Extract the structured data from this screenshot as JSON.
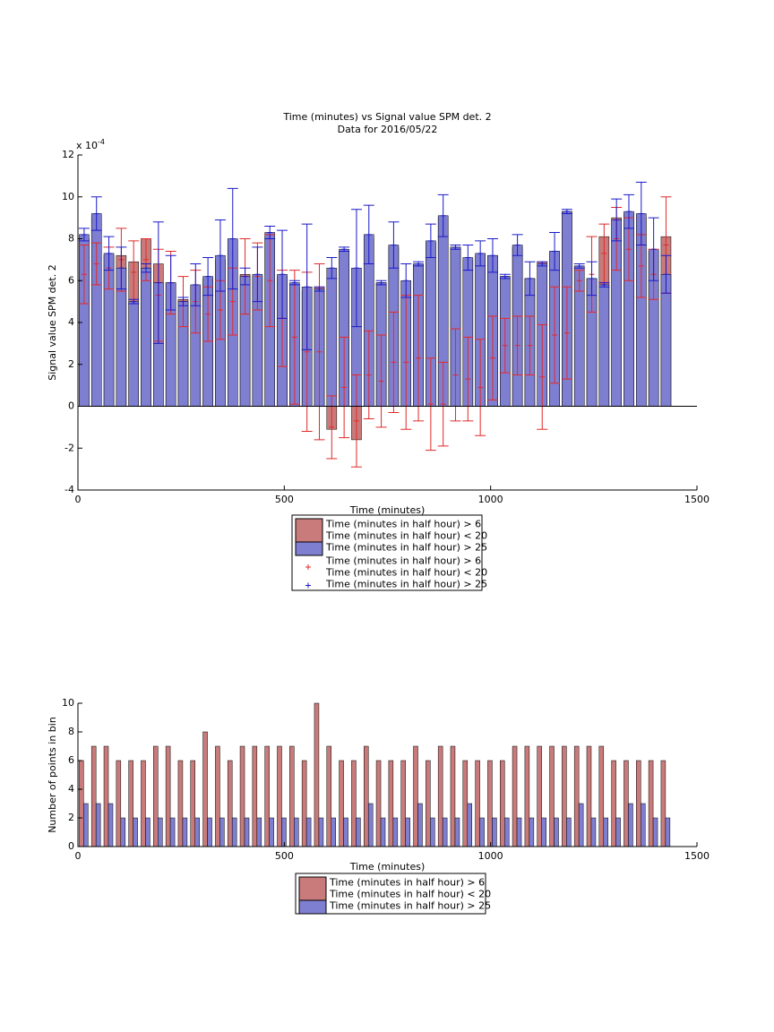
{
  "chart_data": [
    {
      "type": "bar_errorbar",
      "title": "Time (minutes) vs Signal value SPM det. 2",
      "subtitle": "Data for 2016/05/22",
      "x_label": "Time (minutes)",
      "y_label": "Signal value SPM det. 2",
      "y_multiplier": {
        "base": "x 10",
        "exponent": "-4"
      },
      "xlim": [
        0,
        1500
      ],
      "xticks": [
        0,
        500,
        1000,
        1500
      ],
      "ylim": [
        -4,
        12
      ],
      "yticks": [
        -4,
        -2,
        0,
        2,
        4,
        6,
        8,
        10,
        12
      ],
      "x": [
        15,
        45,
        75,
        105,
        135,
        165,
        195,
        225,
        255,
        285,
        315,
        345,
        375,
        405,
        435,
        465,
        495,
        525,
        555,
        585,
        615,
        645,
        675,
        705,
        735,
        765,
        795,
        825,
        855,
        885,
        915,
        945,
        975,
        1005,
        1035,
        1065,
        1095,
        1125,
        1155,
        1185,
        1215,
        1245,
        1275,
        1305,
        1335,
        1365,
        1395,
        1425
      ],
      "series": [
        {
          "name": "Time (minutes in half hour) > 6\nTime (minutes in half hour) < 20",
          "color": "#c97b7b",
          "kind": "bar",
          "values": [
            8.0,
            9.0,
            7.2,
            7.2,
            6.9,
            8.0,
            6.8,
            5.9,
            5.1,
            5.7,
            6.1,
            7.0,
            7.5,
            6.3,
            6.2,
            8.1,
            6.2,
            5.7,
            5.5,
            5.7,
            -1.1,
            7.4,
            -1.6,
            8.0,
            5.9,
            7.6,
            6.0,
            6.8,
            7.8,
            9.0,
            7.6,
            7.0,
            7.2,
            7.2,
            6.2,
            7.6,
            6.1,
            6.9,
            7.4,
            9.3,
            6.7,
            6.1,
            8.1,
            9.0,
            9.2,
            9.0,
            7.4,
            8.1
          ]
        },
        {
          "name": "Time (minutes in half hour) > 25",
          "color": "#7f7fd2",
          "kind": "bar",
          "values": [
            8.2,
            9.2,
            7.3,
            6.6,
            5.0,
            6.6,
            5.9,
            5.9,
            5.0,
            5.8,
            6.2,
            7.2,
            8.0,
            6.2,
            6.3,
            8.3,
            6.3,
            5.9,
            5.7,
            5.6,
            6.6,
            7.5,
            6.6,
            8.2,
            5.9,
            7.7,
            6.0,
            6.8,
            7.9,
            9.1,
            7.6,
            7.1,
            7.3,
            7.2,
            6.2,
            7.7,
            6.1,
            6.8,
            7.4,
            9.3,
            6.7,
            6.1,
            5.8,
            8.9,
            9.3,
            9.2,
            7.5,
            6.3
          ]
        },
        {
          "name": "Time (minutes in half hour) > 6\nTime (minutes in half hour) < 20",
          "color": "#e02a2a",
          "kind": "errorbar",
          "values": [
            6.3,
            6.8,
            6.6,
            7.0,
            6.4,
            7.0,
            5.3,
            5.9,
            5.0,
            5.0,
            4.4,
            4.6,
            5.0,
            6.2,
            6.2,
            6.0,
            4.2,
            3.3,
            2.6,
            2.6,
            -1.0,
            0.9,
            -0.7,
            1.5,
            1.2,
            2.1,
            2.1,
            2.3,
            0.1,
            0.1,
            1.5,
            1.3,
            0.9,
            2.3,
            2.9,
            2.9,
            2.9,
            1.4,
            3.4,
            3.5,
            6.0,
            6.3,
            7.3,
            8.0,
            7.5,
            6.7,
            6.3,
            7.7
          ],
          "errors": [
            1.4,
            1.0,
            1.0,
            1.5,
            1.5,
            1.0,
            2.2,
            1.5,
            1.2,
            1.5,
            1.3,
            1.4,
            1.6,
            1.8,
            1.6,
            2.2,
            2.3,
            3.2,
            3.8,
            4.2,
            1.5,
            2.4,
            2.2,
            2.1,
            2.2,
            2.4,
            3.2,
            3.0,
            2.2,
            2.0,
            2.2,
            2.0,
            2.3,
            2.0,
            1.3,
            1.4,
            1.4,
            2.5,
            2.3,
            2.2,
            0.5,
            1.8,
            1.4,
            1.5,
            1.5,
            1.5,
            1.2,
            2.3
          ]
        },
        {
          "name": "Time (minutes in half hour) > 25",
          "color": "#1a1ac8",
          "kind": "errorbar",
          "values": [
            8.2,
            9.2,
            7.3,
            6.6,
            5.0,
            6.6,
            5.9,
            5.9,
            5.0,
            5.8,
            6.2,
            7.2,
            8.0,
            6.2,
            6.3,
            8.3,
            6.3,
            5.9,
            5.7,
            5.6,
            6.6,
            7.5,
            6.6,
            8.2,
            5.9,
            7.7,
            6.0,
            6.8,
            7.9,
            9.1,
            7.6,
            7.1,
            7.3,
            7.2,
            6.2,
            7.7,
            6.1,
            6.8,
            7.4,
            9.3,
            6.7,
            6.1,
            5.8,
            8.9,
            9.3,
            9.2,
            7.5,
            6.3
          ],
          "errors": [
            0.3,
            0.8,
            0.8,
            1.0,
            0.1,
            0.2,
            2.9,
            1.3,
            0.2,
            1.0,
            0.9,
            1.7,
            2.4,
            0.4,
            1.3,
            0.3,
            2.1,
            0.1,
            3.0,
            0.1,
            0.5,
            0.1,
            2.8,
            1.4,
            0.1,
            1.1,
            0.8,
            0.1,
            0.8,
            1.0,
            0.1,
            0.6,
            0.6,
            0.8,
            0.1,
            0.5,
            0.8,
            0.1,
            0.9,
            0.1,
            0.1,
            0.8,
            0.1,
            1.0,
            0.8,
            1.5,
            1.5,
            0.9
          ]
        }
      ]
    },
    {
      "type": "bar",
      "x_label": "Time (minutes)",
      "y_label": "Number of points in bin",
      "xlim": [
        0,
        1500
      ],
      "xticks": [
        0,
        500,
        1000,
        1500
      ],
      "ylim": [
        0,
        10
      ],
      "yticks": [
        0,
        2,
        4,
        6,
        8,
        10
      ],
      "x": [
        15,
        45,
        75,
        105,
        135,
        165,
        195,
        225,
        255,
        285,
        315,
        345,
        375,
        405,
        435,
        465,
        495,
        525,
        555,
        585,
        615,
        645,
        675,
        705,
        735,
        765,
        795,
        825,
        855,
        885,
        915,
        945,
        975,
        1005,
        1035,
        1065,
        1095,
        1125,
        1155,
        1185,
        1215,
        1245,
        1275,
        1305,
        1335,
        1365,
        1395,
        1425
      ],
      "series": [
        {
          "name": "Time (minutes in half hour) > 6\nTime (minutes in half hour) < 20",
          "color": "#c97b7b",
          "values": [
            6,
            7,
            7,
            6,
            6,
            6,
            7,
            7,
            6,
            6,
            8,
            7,
            6,
            7,
            7,
            7,
            7,
            7,
            6,
            10,
            7,
            6,
            6,
            7,
            6,
            6,
            6,
            7,
            6,
            7,
            7,
            6,
            6,
            6,
            6,
            7,
            7,
            7,
            7,
            7,
            7,
            7,
            7,
            6,
            6,
            6,
            6,
            6
          ]
        },
        {
          "name": "Time (minutes in half hour) > 25",
          "color": "#7f7fd2",
          "values": [
            3,
            3,
            3,
            2,
            2,
            2,
            2,
            2,
            2,
            2,
            2,
            2,
            2,
            2,
            2,
            2,
            2,
            2,
            2,
            2,
            2,
            2,
            2,
            3,
            2,
            2,
            2,
            3,
            2,
            2,
            2,
            3,
            2,
            2,
            2,
            2,
            2,
            2,
            2,
            2,
            3,
            2,
            2,
            2,
            3,
            3,
            2,
            2
          ]
        }
      ]
    }
  ]
}
